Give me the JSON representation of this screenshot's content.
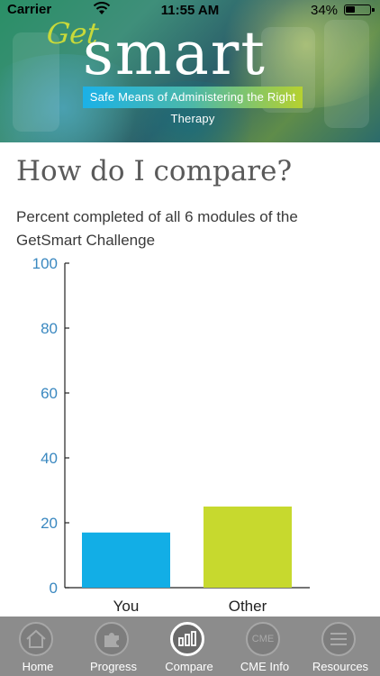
{
  "status_bar": {
    "carrier": "Carrier",
    "time": "11:55 AM",
    "battery": "34%"
  },
  "header": {
    "logo_get": "Get",
    "logo_smart": "smart",
    "tagline": "Safe Means of Administering the Right Therapy"
  },
  "page": {
    "title": "How do I compare?",
    "description": "Percent completed of all 6 modules of the GetSmart Challenge"
  },
  "chart_data": {
    "type": "bar",
    "categories": [
      "You",
      "Other"
    ],
    "values": [
      17,
      25
    ],
    "colors": [
      "#12aee6",
      "#c7d92e"
    ],
    "ylim": [
      0,
      100
    ],
    "yticks": [
      0,
      20,
      40,
      60,
      80,
      100
    ],
    "axis_color": "#3a88c0",
    "grid": false
  },
  "tabs": [
    {
      "label": "Home",
      "icon": "home-icon",
      "active": false
    },
    {
      "label": "Progress",
      "icon": "puzzle-icon",
      "active": false
    },
    {
      "label": "Compare",
      "icon": "bar-chart-icon",
      "active": true
    },
    {
      "label": "CME Info",
      "icon": "cme-icon",
      "icon_text": "CME",
      "active": false
    },
    {
      "label": "Resources",
      "icon": "menu-icon",
      "active": false
    }
  ]
}
